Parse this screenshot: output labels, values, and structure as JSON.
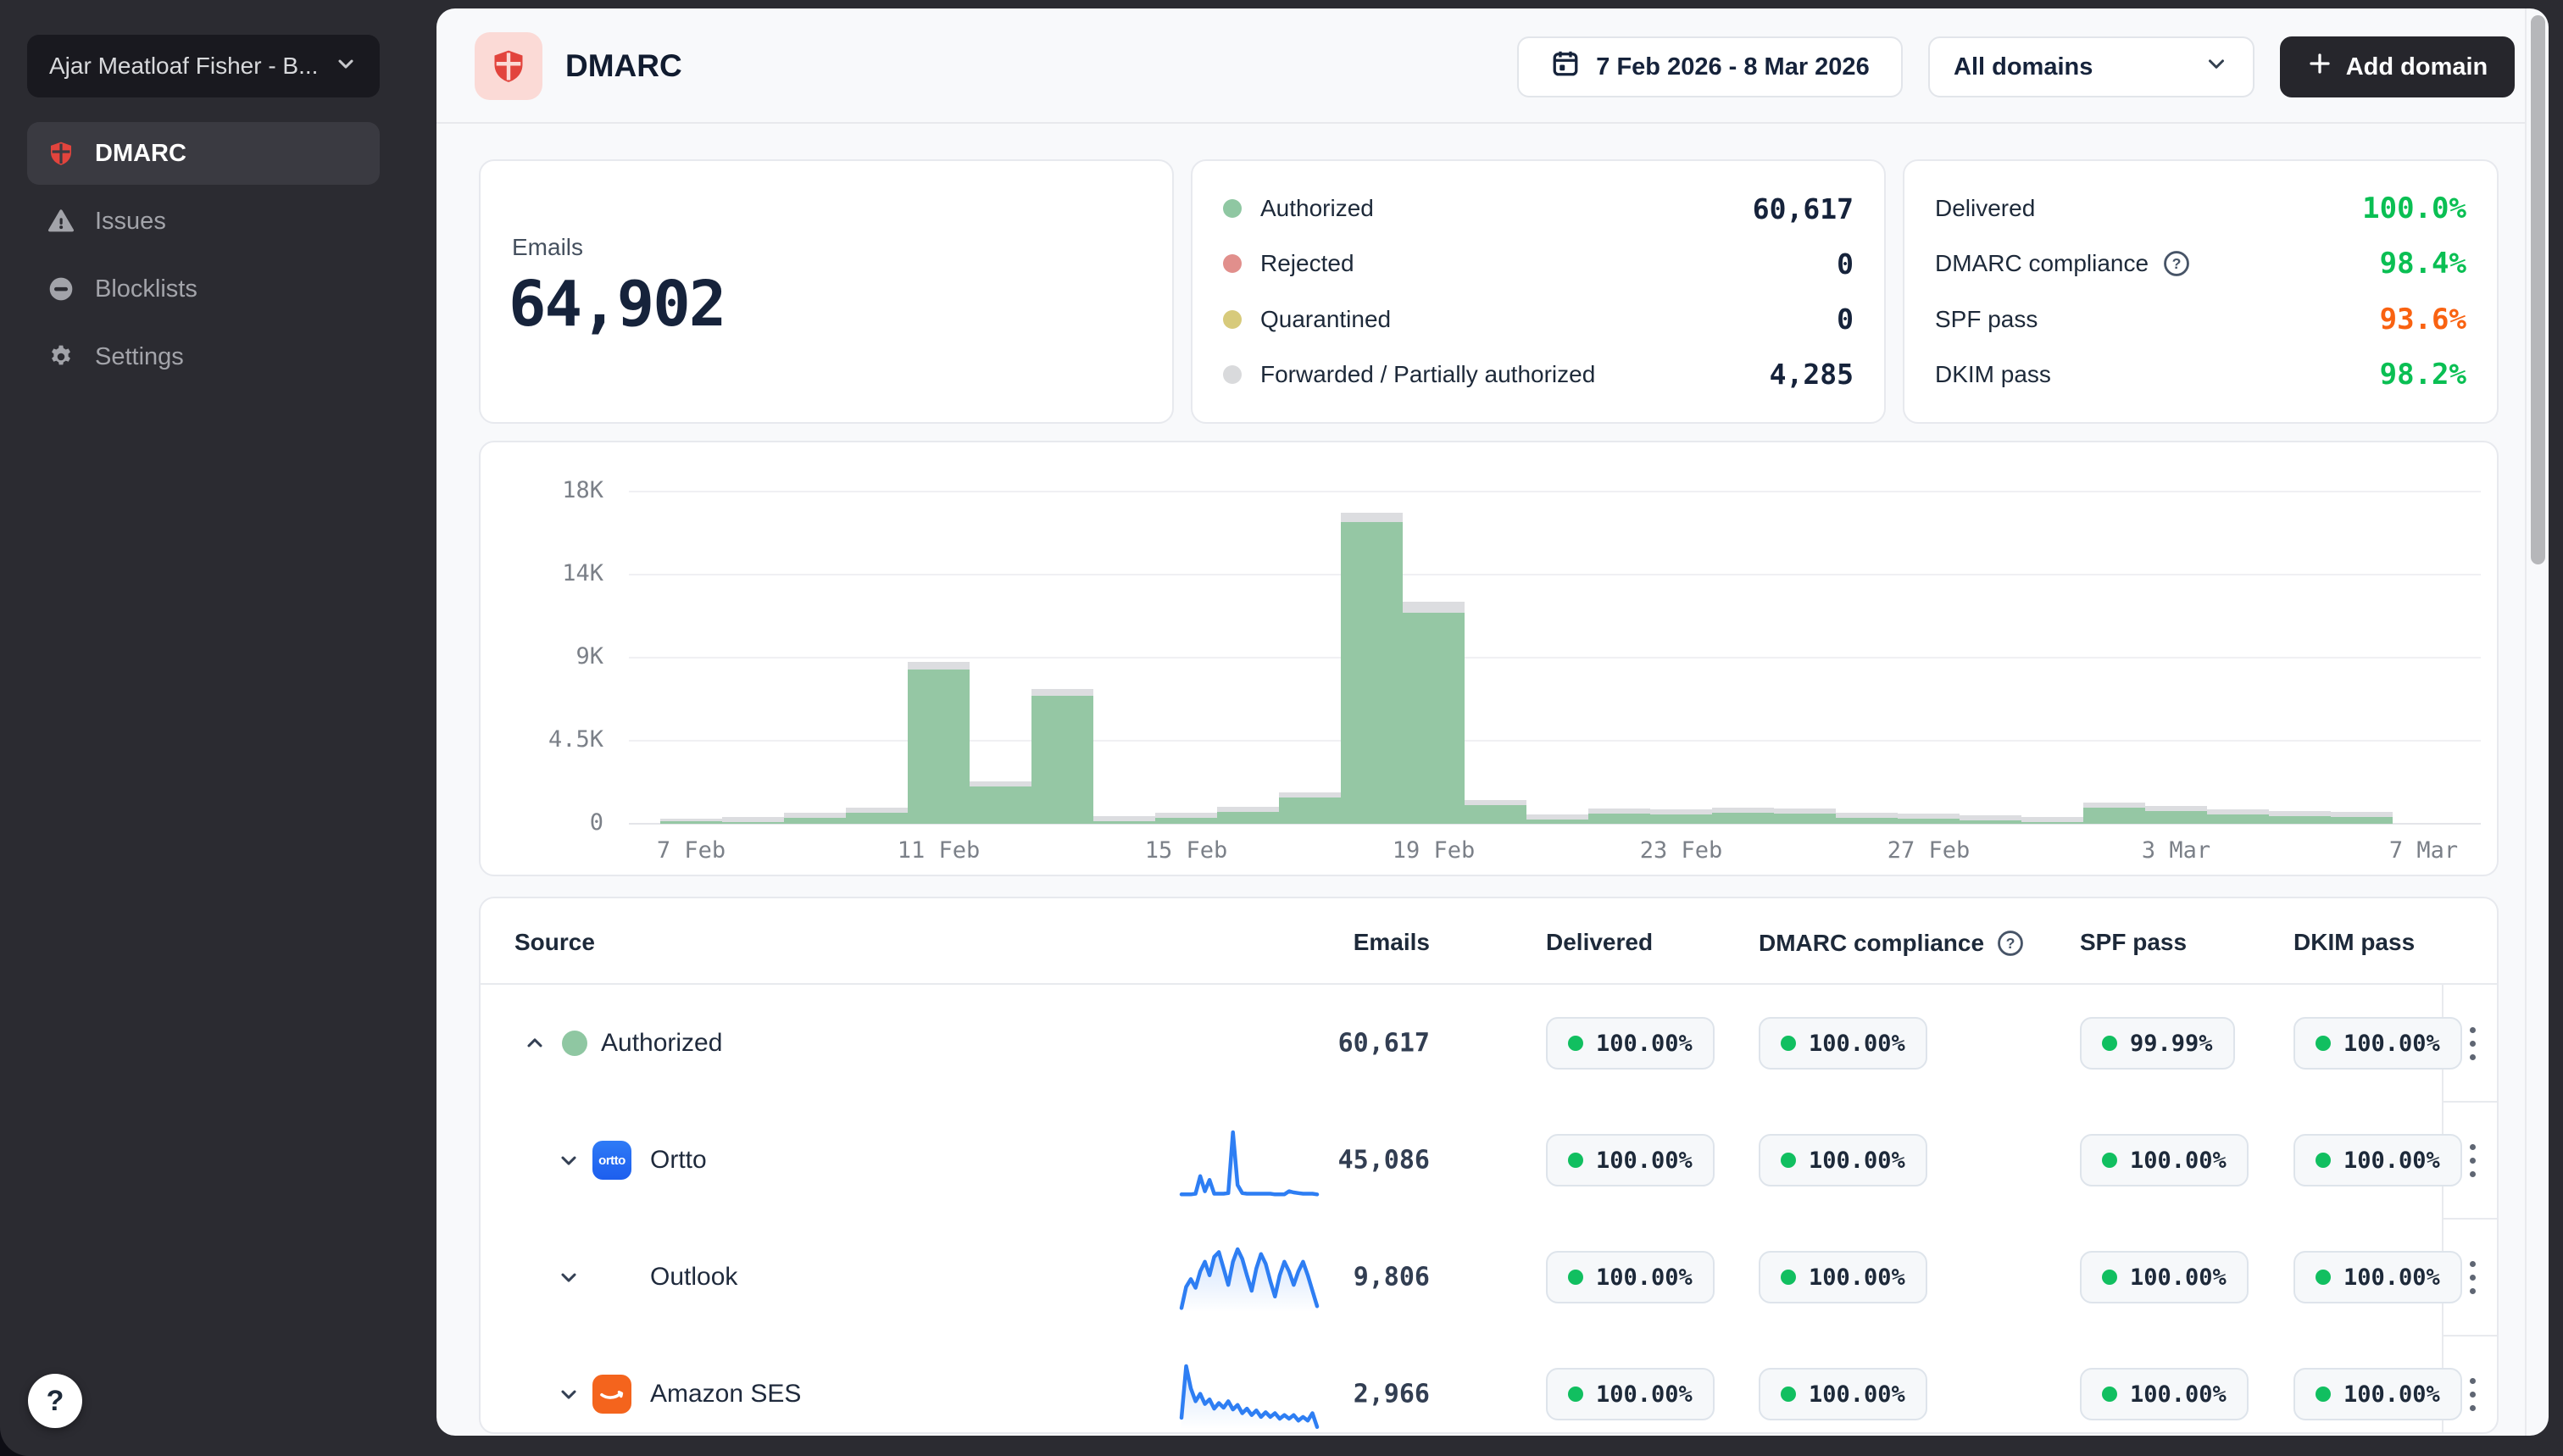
{
  "sidebar": {
    "workspace": {
      "label": "Ajar Meatloaf Fisher - B..."
    },
    "items": [
      {
        "label": "DMARC",
        "icon": "shield-icon",
        "active": true
      },
      {
        "label": "Issues",
        "icon": "warning-icon",
        "active": false
      },
      {
        "label": "Blocklists",
        "icon": "blocklist-icon",
        "active": false
      },
      {
        "label": "Settings",
        "icon": "gear-icon",
        "active": false
      }
    ],
    "help_label": "?"
  },
  "header": {
    "title": "DMARC",
    "date_range": "7 Feb 2026 - 8 Mar 2026",
    "domain_filter": "All domains",
    "add_domain_label": "Add domain"
  },
  "stats": {
    "emails": {
      "label": "Emails",
      "value": "64,902"
    },
    "breakdown": [
      {
        "label": "Authorized",
        "value": "60,617",
        "color": "#8fc7a2"
      },
      {
        "label": "Rejected",
        "value": "0",
        "color": "#e18f8c"
      },
      {
        "label": "Quarantined",
        "value": "0",
        "color": "#d7ca7b"
      },
      {
        "label": "Forwarded / Partially authorized",
        "value": "4,285",
        "color": "#d9dadc"
      }
    ],
    "rates": [
      {
        "label": "Delivered",
        "value": "100.0%",
        "color": "#0abf53",
        "help": false
      },
      {
        "label": "DMARC compliance",
        "value": "98.4%",
        "color": "#0abf53",
        "help": true
      },
      {
        "label": "SPF pass",
        "value": "93.6%",
        "color": "#f96211",
        "help": false
      },
      {
        "label": "DKIM pass",
        "value": "98.2%",
        "color": "#0abf53",
        "help": false
      }
    ]
  },
  "chart_data": {
    "type": "bar",
    "stacked": true,
    "x": [
      "7 Feb",
      "8 Feb",
      "9 Feb",
      "10 Feb",
      "11 Feb",
      "12 Feb",
      "13 Feb",
      "14 Feb",
      "15 Feb",
      "16 Feb",
      "17 Feb",
      "18 Feb",
      "19 Feb",
      "20 Feb",
      "21 Feb",
      "22 Feb",
      "23 Feb",
      "24 Feb",
      "25 Feb",
      "26 Feb",
      "27 Feb",
      "28 Feb",
      "1 Mar",
      "2 Mar",
      "3 Mar",
      "4 Mar",
      "5 Mar",
      "6 Mar",
      "7 Mar",
      "8 Mar"
    ],
    "series": [
      {
        "name": "Authorized",
        "color": "#95c7a4",
        "values": [
          180,
          300,
          440,
          700,
          8350,
          2050,
          6900,
          280,
          420,
          750,
          1500,
          16350,
          11450,
          1150,
          380,
          700,
          660,
          760,
          720,
          520,
          470,
          380,
          330,
          1050,
          870,
          720,
          640,
          560,
          0,
          0
        ]
      },
      {
        "name": "Forwarded / Partially authorized",
        "color": "#dcdde0",
        "values": [
          80,
          90,
          140,
          160,
          420,
          230,
          380,
          120,
          160,
          180,
          200,
          520,
          600,
          150,
          120,
          110,
          100,
          110,
          100,
          90,
          80,
          70,
          60,
          90,
          90,
          80,
          70,
          60,
          0,
          0
        ]
      }
    ],
    "ylim": [
      0,
      18000
    ],
    "yticks": [
      {
        "value": 0,
        "label": "0"
      },
      {
        "value": 4500,
        "label": "4.5K"
      },
      {
        "value": 9000,
        "label": "9K"
      },
      {
        "value": 13500,
        "label": "14K"
      },
      {
        "value": 18000,
        "label": "18K"
      }
    ],
    "xticks": [
      {
        "index": 0,
        "label": "7 Feb"
      },
      {
        "index": 4,
        "label": "11 Feb"
      },
      {
        "index": 8,
        "label": "15 Feb"
      },
      {
        "index": 12,
        "label": "19 Feb"
      },
      {
        "index": 16,
        "label": "23 Feb"
      },
      {
        "index": 20,
        "label": "27 Feb"
      },
      {
        "index": 24,
        "label": "3 Mar"
      },
      {
        "index": 28,
        "label": "7 Mar"
      }
    ],
    "grid": "horizontal",
    "legend": "none"
  },
  "table": {
    "columns": [
      "Source",
      "Emails",
      "Delivered",
      "DMARC compliance",
      "SPF pass",
      "DKIM pass"
    ],
    "spark_color": "#2e7ef3",
    "rows": [
      {
        "kind": "group",
        "expanded": true,
        "dot_color": "#8fc7a2",
        "name": "Authorized",
        "emails": "60,617",
        "badges": [
          "100.00%",
          "100.00%",
          "99.99%",
          "100.00%"
        ]
      },
      {
        "kind": "source",
        "expanded": false,
        "icon": "ortto-icon",
        "name": "Ortto",
        "emails": "45,086",
        "badges": [
          "100.00%",
          "100.00%",
          "100.00%",
          "100.00%"
        ],
        "spark": [
          1,
          1,
          1,
          2,
          30,
          6,
          24,
          2,
          2,
          2,
          3,
          100,
          16,
          3,
          2,
          2,
          2,
          2,
          2,
          2,
          1,
          1,
          1,
          6,
          4,
          3,
          2,
          2,
          2,
          1
        ]
      },
      {
        "kind": "source",
        "expanded": false,
        "icon": "outlook-icon",
        "name": "Outlook",
        "emails": "9,806",
        "badges": [
          "100.00%",
          "100.00%",
          "100.00%",
          "100.00%"
        ],
        "spark": [
          4,
          26,
          34,
          25,
          42,
          52,
          38,
          57,
          62,
          45,
          28,
          52,
          65,
          55,
          38,
          22,
          45,
          60,
          50,
          32,
          16,
          38,
          52,
          42,
          28,
          42,
          52,
          38,
          22,
          6
        ]
      },
      {
        "kind": "source",
        "expanded": false,
        "icon": "amazon-ses-icon",
        "name": "Amazon SES",
        "emails": "2,966",
        "badges": [
          "100.00%",
          "100.00%",
          "100.00%",
          "100.00%"
        ],
        "spark": [
          12,
          68,
          44,
          30,
          38,
          27,
          32,
          22,
          28,
          23,
          30,
          21,
          26,
          17,
          22,
          15,
          20,
          13,
          18,
          13,
          17,
          11,
          15,
          11,
          15,
          9,
          13,
          9,
          17,
          2
        ]
      }
    ]
  }
}
